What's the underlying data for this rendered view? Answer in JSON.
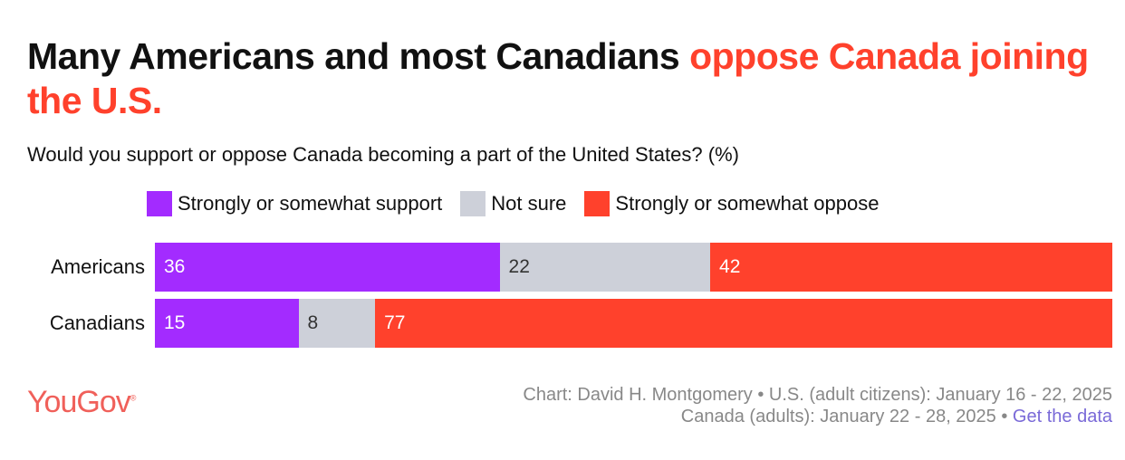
{
  "title": {
    "part1": "Many Americans and most Canadians ",
    "highlight": "oppose Canada joining the U.S."
  },
  "subtitle": "Would you support or oppose Canada becoming a part of the United States? (%)",
  "colors": {
    "support": "#a32bff",
    "not_sure": "#cdd0d9",
    "oppose": "#ff412c"
  },
  "chart_data": {
    "type": "bar",
    "stacked": true,
    "orientation": "horizontal",
    "categories": [
      "Americans",
      "Canadians"
    ],
    "series": [
      {
        "name": "Strongly or somewhat support",
        "values": [
          36,
          15
        ],
        "color": "#a32bff"
      },
      {
        "name": "Not sure",
        "values": [
          22,
          8
        ],
        "color": "#cdd0d9"
      },
      {
        "name": "Strongly or somewhat oppose",
        "values": [
          42,
          77
        ],
        "color": "#ff412c"
      }
    ],
    "xlim": [
      0,
      100
    ],
    "legend": "top",
    "grid": false
  },
  "footer": {
    "logo": "YouGov",
    "line1": "Chart: David H. Montgomery • U.S. (adult citizens): January 16 - 22, 2025",
    "line2": "Canada (adults): January 22 - 28, 2025 • ",
    "link": "Get the data"
  }
}
